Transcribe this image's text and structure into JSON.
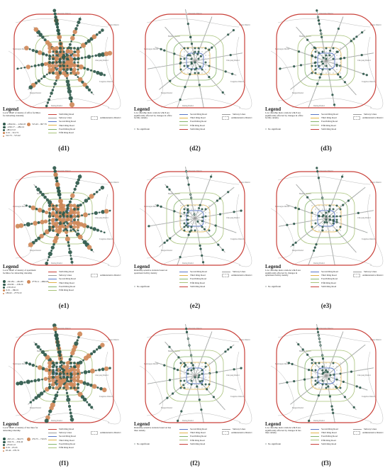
{
  "colors": {
    "sixth_ring": "#c9413a",
    "fifth_ring": "#a8c27a",
    "fourth_ring": "#86b56b",
    "third_ring": "#e0b34a",
    "second_ring": "#5b78c7",
    "subway": "#9a9a9a",
    "district": "#bbbbbb",
    "station_green": "#2f5a4c",
    "station_orange": "#d08a5a"
  },
  "districts": [
    "Changping District",
    "Shunyi District",
    "Mentougou District",
    "Haidian District",
    "Chaoyang District",
    "Tongzhou District",
    "Fengtai District",
    "Daxing District"
  ],
  "ring_labels": [
    "Second Ring Road",
    "Third Ring Road",
    "Fourth Ring Road",
    "Fifth Ring Road",
    "Sixth Ring Road"
  ],
  "line_legend": {
    "sixth": "Sixth Ring Road",
    "subway": "Subway Lines",
    "second": "Second Ring Road",
    "admin": "Administrative District",
    "third": "Third Ring Road",
    "fourth": "Fourth Ring Road",
    "fifth": "Fifth Ring Road"
  },
  "panels": [
    {
      "label": "(d1)",
      "title": "Legend",
      "heading": "Local SHAP of density of office facilities for debarding ridership",
      "classes": [
        "-1862.04 – -1262.18",
        "-1262.17 – -484.14",
        "-484.13–0",
        "0.01 – 312.72",
        "312.73 – 515.42"
      ],
      "extra": "515.43 – 697.79",
      "style": "shap"
    },
    {
      "label": "(d2)",
      "title": "Legend",
      "heading": "Low ridership metro stations which are significantly affected by changes in office facility density",
      "classes": [
        "No significant"
      ],
      "extra": "",
      "style": "sig"
    },
    {
      "label": "(d3)",
      "title": "Legend",
      "heading": "Low ridership metro stations which are significantly affected by changes in office facility density",
      "classes": [
        "No significant"
      ],
      "extra": "",
      "style": "sig"
    },
    {
      "label": "(e1)",
      "title": "Legend",
      "heading": "Local SHAP of density of apartment facilities for debarding ridership",
      "classes": [
        "-361.84 – -262.85",
        "-262.84 – -158.19",
        "-158.18–0",
        "0.01 – 186.01",
        "186.02 – 2770.10"
      ],
      "extra": "2770.11 – 4862.82",
      "style": "shap"
    },
    {
      "label": "(e2)",
      "title": "Legend",
      "heading": "Ridership sensitive stations based on apartment facility density",
      "classes": [
        "No significant"
      ],
      "extra": "",
      "style": "sig"
    },
    {
      "label": "(e3)",
      "title": "Legend",
      "heading": "Low ridership metro stations which are significantly affected by changes in apartment facility density",
      "classes": [
        "No significant"
      ],
      "extra": "",
      "style": "sig"
    },
    {
      "label": "(f1)",
      "title": "Legend",
      "heading": "Local SHAP of density of bus lines for debarding ridership",
      "classes": [
        "-815.13 – -564.75",
        "-564.74 – -254.42",
        "-254.41–0",
        "0.01 – 65.43",
        "65.44 – 276.74"
      ],
      "extra": "276.75 – 710.55",
      "style": "shap"
    },
    {
      "label": "(f2)",
      "title": "Legend",
      "heading": "Ridership sensitive stations based on bus lines density",
      "classes": [
        "No significant"
      ],
      "extra": "",
      "style": "sig"
    },
    {
      "label": "(f3)",
      "title": "Legend",
      "heading": "Low ridership metro stations which are significantly affected by changes in bus lines density",
      "classes": [
        "No significant"
      ],
      "extra": "",
      "style": "sig"
    }
  ]
}
